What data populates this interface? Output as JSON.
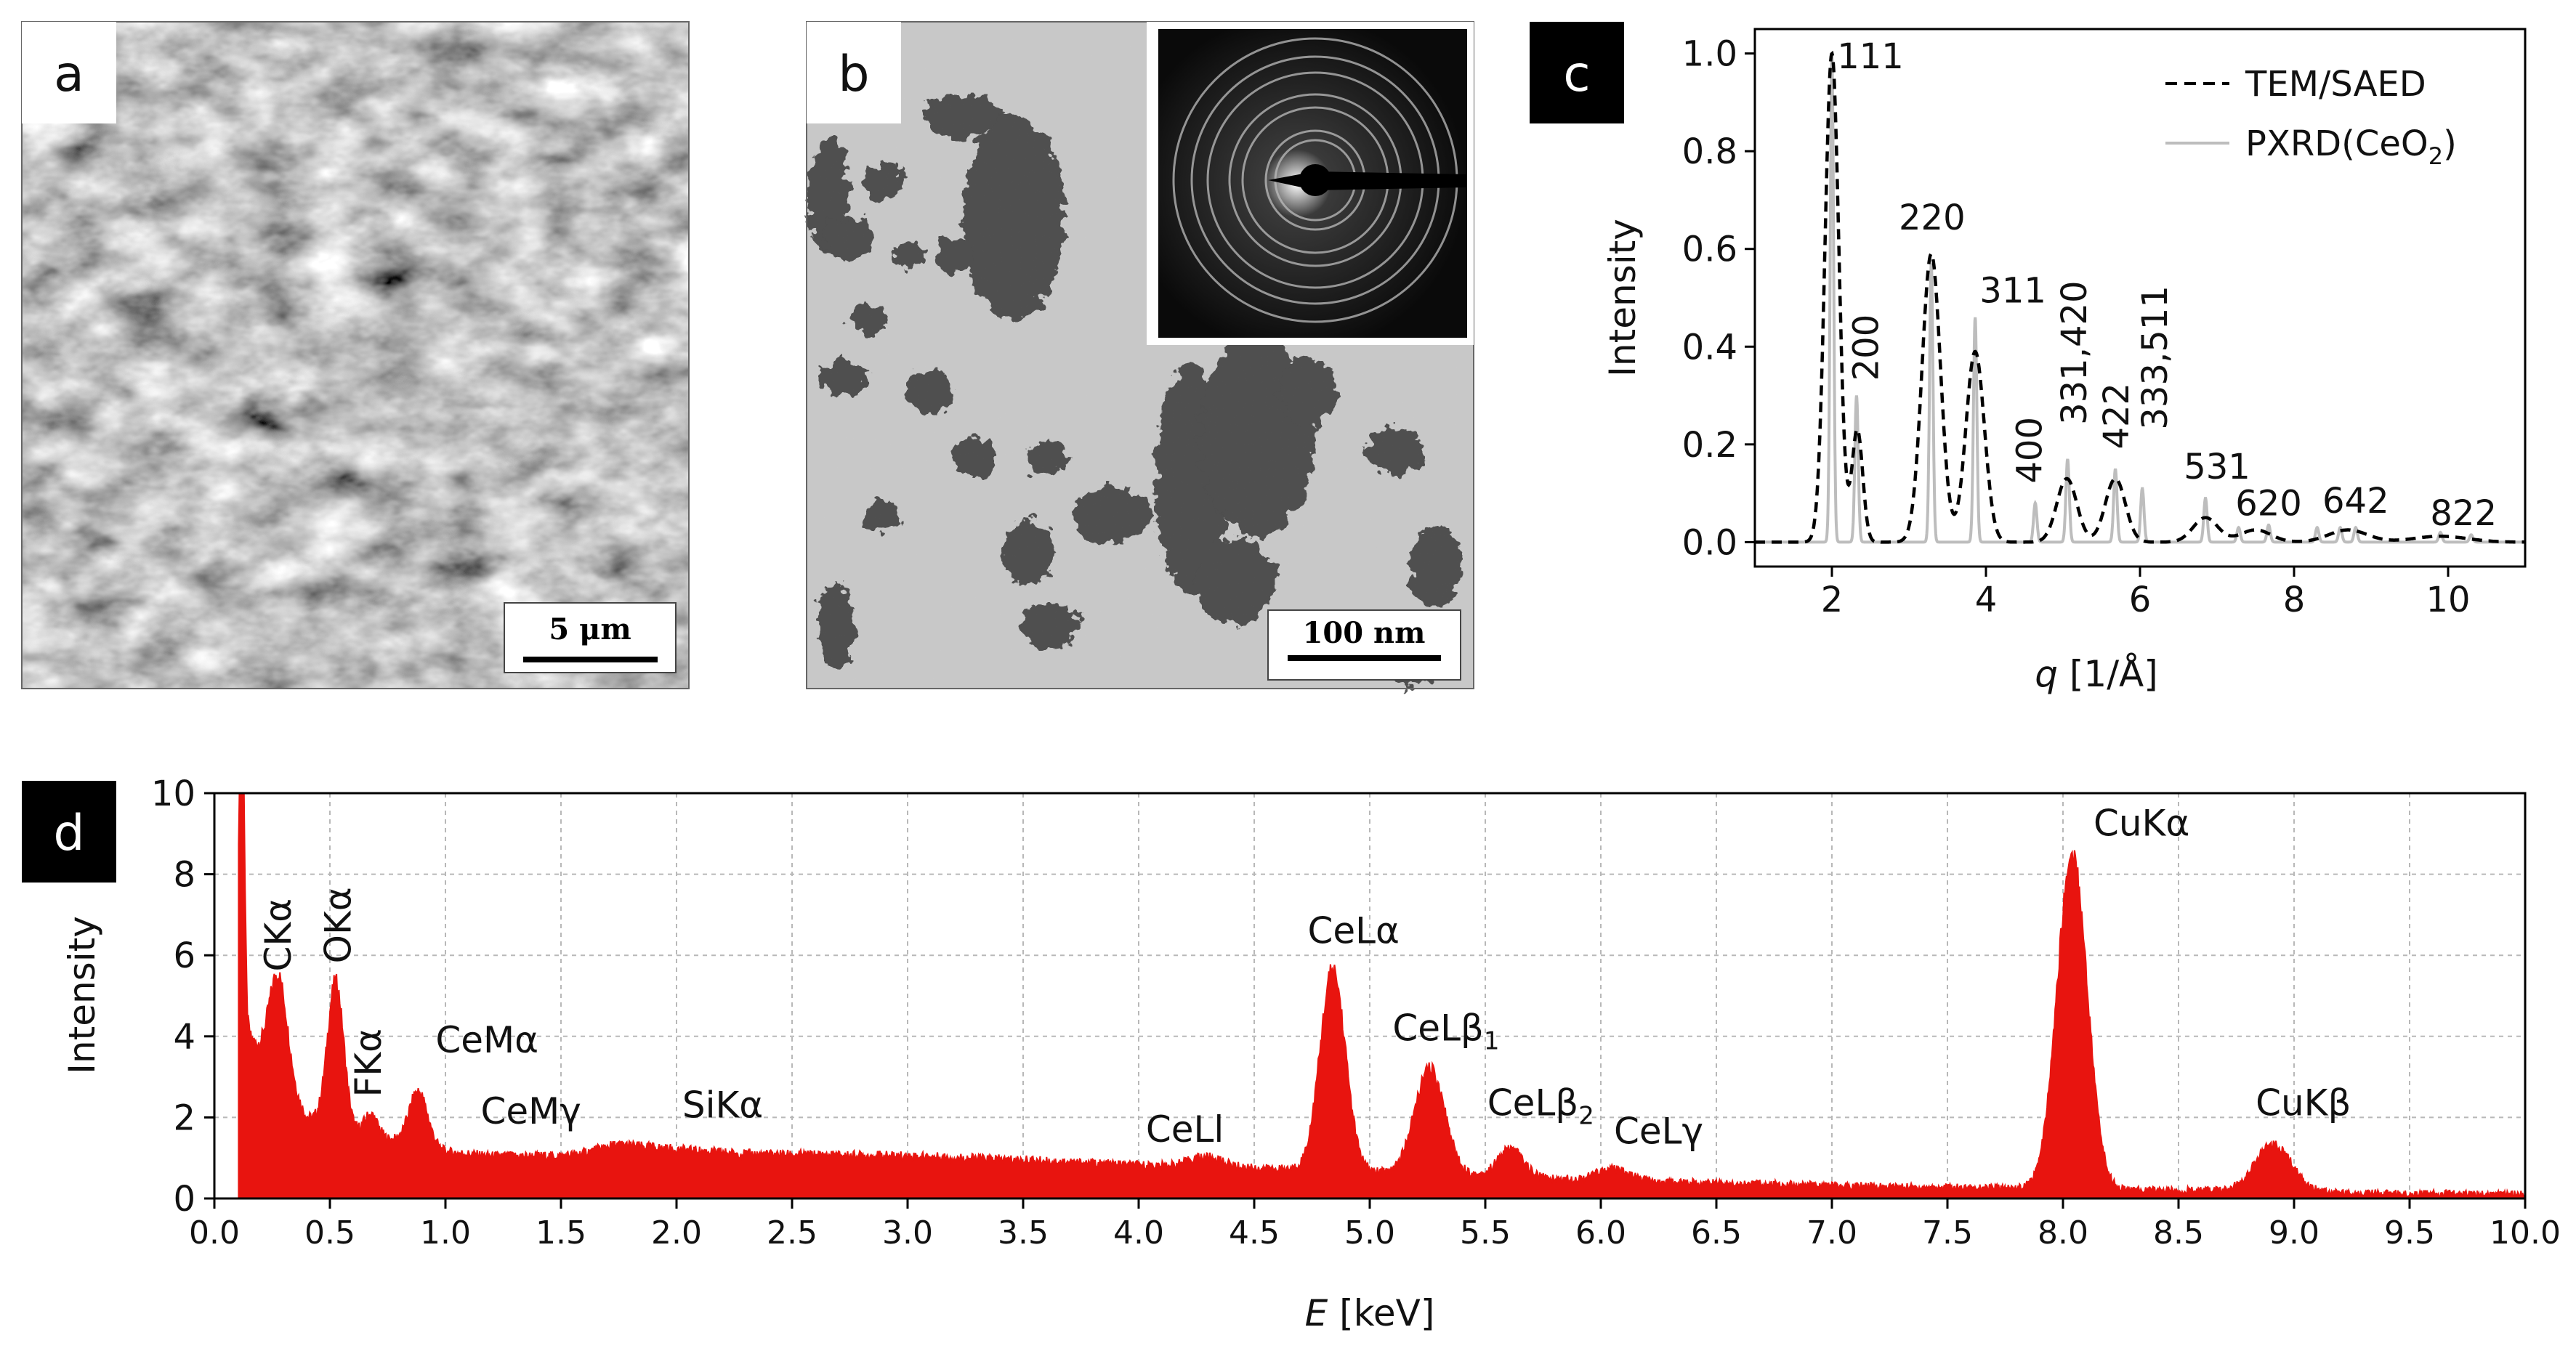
{
  "panel_a": {
    "label": "a",
    "scale_bar": "5 μm"
  },
  "panel_b": {
    "label": "b",
    "scale_bar": "100 nm"
  },
  "panel_c": {
    "label": "c"
  },
  "panel_d": {
    "label": "d"
  },
  "colors": {
    "edx_fill": "#e8140f",
    "pxrd": "#bdbdbd",
    "saed": "#000000"
  },
  "chart_data": [
    {
      "type": "line",
      "title": "",
      "xlabel": "q [1/Å]",
      "xlabel_italic": "q",
      "xlabel_unit": "[1/Å]",
      "ylabel": "Intensity",
      "xlim": [
        1,
        11
      ],
      "ylim": [
        -0.05,
        1.05
      ],
      "xticks": [
        "2",
        "4",
        "6",
        "8",
        "10"
      ],
      "yticks": [
        "0.0",
        "0.2",
        "0.4",
        "0.6",
        "0.8",
        "1.0"
      ],
      "legend": {
        "position": "top-right",
        "entries": [
          "TEM/SAED",
          "PXRD(CeO",
          "2",
          ")"
        ]
      },
      "series": [
        {
          "name": "TEM/SAED",
          "style": "dashed",
          "peaks": [
            {
              "x": 2.0,
              "h": 1.0,
              "w": 0.09
            },
            {
              "x": 2.33,
              "h": 0.23,
              "w": 0.07
            },
            {
              "x": 3.29,
              "h": 0.59,
              "w": 0.12
            },
            {
              "x": 3.86,
              "h": 0.39,
              "w": 0.12
            },
            {
              "x": 5.05,
              "h": 0.13,
              "w": 0.13
            },
            {
              "x": 5.68,
              "h": 0.13,
              "w": 0.13
            },
            {
              "x": 6.85,
              "h": 0.05,
              "w": 0.16
            },
            {
              "x": 7.5,
              "h": 0.025,
              "w": 0.2
            },
            {
              "x": 8.7,
              "h": 0.025,
              "w": 0.25
            },
            {
              "x": 9.9,
              "h": 0.012,
              "w": 0.35
            }
          ]
        },
        {
          "name": "PXRD(CeO2)",
          "style": "solid",
          "peaks": [
            {
              "x": 2.0,
              "h": 1.0
            },
            {
              "x": 2.32,
              "h": 0.3
            },
            {
              "x": 3.29,
              "h": 0.57
            },
            {
              "x": 3.86,
              "h": 0.46
            },
            {
              "x": 4.64,
              "h": 0.08
            },
            {
              "x": 5.06,
              "h": 0.17
            },
            {
              "x": 5.68,
              "h": 0.15
            },
            {
              "x": 6.03,
              "h": 0.11
            },
            {
              "x": 6.85,
              "h": 0.09
            },
            {
              "x": 7.28,
              "h": 0.03
            },
            {
              "x": 7.67,
              "h": 0.035
            },
            {
              "x": 8.3,
              "h": 0.03
            },
            {
              "x": 8.6,
              "h": 0.03
            },
            {
              "x": 8.8,
              "h": 0.03
            },
            {
              "x": 9.9,
              "h": 0.02
            },
            {
              "x": 10.3,
              "h": 0.015
            }
          ]
        }
      ],
      "annotations": [
        {
          "text": "111",
          "x": 2.5,
          "y": 0.97,
          "rotate": false
        },
        {
          "text": "200",
          "x": 2.6,
          "y": 0.33,
          "rotate": true
        },
        {
          "text": "220",
          "x": 3.3,
          "y": 0.64,
          "rotate": false
        },
        {
          "text": "311",
          "x": 4.35,
          "y": 0.49,
          "rotate": false
        },
        {
          "text": "400",
          "x": 4.72,
          "y": 0.12,
          "rotate": true
        },
        {
          "text": "331,420",
          "x": 5.3,
          "y": 0.24,
          "rotate": true
        },
        {
          "text": "422",
          "x": 5.85,
          "y": 0.19,
          "rotate": true
        },
        {
          "text": "333,511",
          "x": 6.35,
          "y": 0.23,
          "rotate": true
        },
        {
          "text": "531",
          "x": 7.0,
          "y": 0.13,
          "rotate": false
        },
        {
          "text": "620",
          "x": 7.67,
          "y": 0.055,
          "rotate": false
        },
        {
          "text": "642",
          "x": 8.8,
          "y": 0.06,
          "rotate": false
        },
        {
          "text": "822",
          "x": 10.2,
          "y": 0.035,
          "rotate": false
        }
      ]
    },
    {
      "type": "area",
      "title": "",
      "xlabel": "E [keV]",
      "xlabel_italic": "E",
      "xlabel_unit": "[keV]",
      "ylabel": "Intensity",
      "xlim": [
        0,
        10
      ],
      "ylim": [
        0,
        10
      ],
      "xticks": [
        "0.0",
        "0.5",
        "1.0",
        "1.5",
        "2.0",
        "2.5",
        "3.0",
        "3.5",
        "4.0",
        "4.5",
        "5.0",
        "5.5",
        "6.0",
        "6.5",
        "7.0",
        "7.5",
        "8.0",
        "8.5",
        "9.0",
        "9.5",
        "10.0"
      ],
      "yticks": [
        "0",
        "2",
        "4",
        "6",
        "8",
        "10"
      ],
      "baseline_points": [
        [
          0.12,
          3.5
        ],
        [
          0.15,
          4.0
        ],
        [
          0.2,
          3.5
        ],
        [
          0.4,
          2.0
        ],
        [
          0.6,
          1.6
        ],
        [
          0.8,
          1.4
        ],
        [
          1.0,
          1.15
        ],
        [
          1.2,
          1.05
        ],
        [
          1.5,
          1.05
        ],
        [
          1.9,
          1.25
        ],
        [
          2.3,
          1.1
        ],
        [
          3.0,
          1.05
        ],
        [
          3.5,
          0.95
        ],
        [
          4.0,
          0.82
        ],
        [
          4.5,
          0.75
        ],
        [
          5.0,
          0.65
        ],
        [
          5.5,
          0.55
        ],
        [
          6.0,
          0.45
        ],
        [
          6.5,
          0.38
        ],
        [
          7.0,
          0.32
        ],
        [
          7.5,
          0.27
        ],
        [
          8.0,
          0.24
        ],
        [
          8.5,
          0.2
        ],
        [
          9.0,
          0.16
        ],
        [
          9.5,
          0.12
        ],
        [
          10.0,
          0.1
        ]
      ],
      "peaks": [
        {
          "x": 0.115,
          "h": 12.0,
          "w": 0.012
        },
        {
          "x": 0.277,
          "h": 2.6,
          "w": 0.04
        },
        {
          "x": 0.525,
          "h": 3.6,
          "w": 0.035
        },
        {
          "x": 0.677,
          "h": 0.55,
          "w": 0.03
        },
        {
          "x": 0.883,
          "h": 1.35,
          "w": 0.04
        },
        {
          "x": 1.74,
          "h": 0.15,
          "w": 0.08
        },
        {
          "x": 4.29,
          "h": 0.25,
          "w": 0.07
        },
        {
          "x": 4.84,
          "h": 4.95,
          "w": 0.055
        },
        {
          "x": 5.26,
          "h": 2.6,
          "w": 0.065
        },
        {
          "x": 5.61,
          "h": 0.7,
          "w": 0.055
        },
        {
          "x": 6.05,
          "h": 0.28,
          "w": 0.07
        },
        {
          "x": 8.04,
          "h": 8.25,
          "w": 0.065
        },
        {
          "x": 8.91,
          "h": 1.15,
          "w": 0.08
        }
      ],
      "annotations": [
        {
          "text": "CKα",
          "x": 0.33,
          "y": 5.6,
          "rotate": true
        },
        {
          "text": "OKα",
          "x": 0.59,
          "y": 5.8,
          "rotate": true
        },
        {
          "text": "FKα",
          "x": 0.72,
          "y": 2.5,
          "rotate": true
        },
        {
          "text": "CeMα",
          "x": 1.18,
          "y": 3.6,
          "rotate": false
        },
        {
          "text": "CeMγ",
          "x": 1.37,
          "y": 1.85,
          "rotate": false
        },
        {
          "text": "SiKα",
          "x": 2.2,
          "y": 2.0,
          "rotate": false
        },
        {
          "text": "CeLl",
          "x": 4.2,
          "y": 1.4,
          "rotate": false
        },
        {
          "text": "CeLα",
          "x": 4.93,
          "y": 6.3,
          "rotate": false
        },
        {
          "text": "CeLβ",
          "sub": "1",
          "x": 5.33,
          "y": 3.9,
          "rotate": false
        },
        {
          "text": "CeLβ",
          "sub": "2",
          "x": 5.74,
          "y": 2.05,
          "rotate": false
        },
        {
          "text": "CeLγ",
          "x": 6.25,
          "y": 1.35,
          "rotate": false
        },
        {
          "text": "CuKα",
          "x": 8.34,
          "y": 8.95,
          "rotate": false
        },
        {
          "text": "CuKβ",
          "x": 9.04,
          "y": 2.05,
          "rotate": false
        }
      ]
    }
  ]
}
